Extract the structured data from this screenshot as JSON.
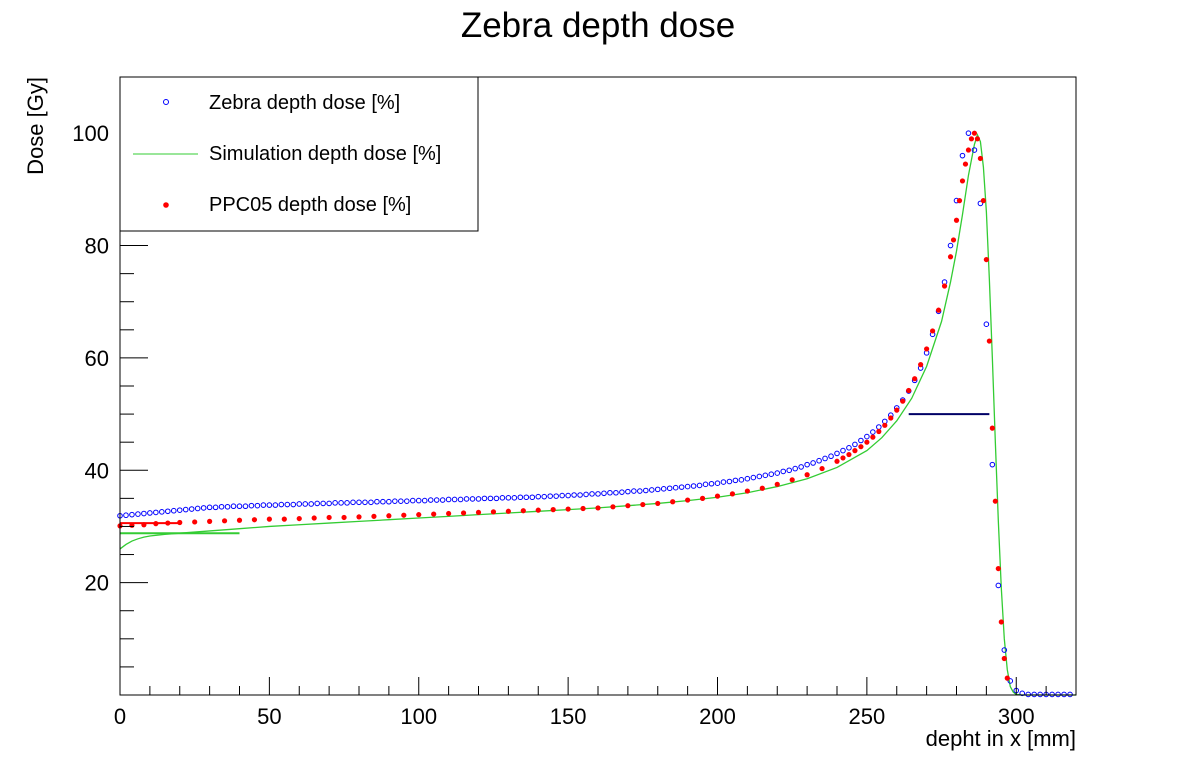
{
  "chart_data": {
    "type": "scatter",
    "title": "Zebra depth dose",
    "xlabel": "depht in x [mm]",
    "ylabel": "Dose [Gy]",
    "xlim": [
      0,
      320
    ],
    "ylim": [
      0,
      110
    ],
    "x_ticks": [
      0,
      50,
      100,
      150,
      200,
      250,
      300
    ],
    "y_ticks": [
      20,
      40,
      60,
      80,
      100
    ],
    "legend_position": "top-left",
    "grid": false,
    "series": [
      {
        "name": "Zebra depth dose [%]",
        "marker": "open-circle",
        "color": "#0000ff",
        "x": [
          0,
          2,
          4,
          6,
          8,
          10,
          12,
          14,
          16,
          18,
          20,
          22,
          24,
          26,
          28,
          30,
          32,
          34,
          36,
          38,
          40,
          42,
          44,
          46,
          48,
          50,
          52,
          54,
          56,
          58,
          60,
          62,
          64,
          66,
          68,
          70,
          72,
          74,
          76,
          78,
          80,
          82,
          84,
          86,
          88,
          90,
          92,
          94,
          96,
          98,
          100,
          102,
          104,
          106,
          108,
          110,
          112,
          114,
          116,
          118,
          120,
          122,
          124,
          126,
          128,
          130,
          132,
          134,
          136,
          138,
          140,
          142,
          144,
          146,
          148,
          150,
          152,
          154,
          156,
          158,
          160,
          162,
          164,
          166,
          168,
          170,
          172,
          174,
          176,
          178,
          180,
          182,
          184,
          186,
          188,
          190,
          192,
          194,
          196,
          198,
          200,
          202,
          204,
          206,
          208,
          210,
          212,
          214,
          216,
          218,
          220,
          222,
          224,
          226,
          228,
          230,
          232,
          234,
          236,
          238,
          240,
          242,
          244,
          246,
          248,
          250,
          252,
          254,
          256,
          258,
          260,
          262,
          264,
          266,
          268,
          270,
          272,
          274,
          276,
          278,
          280,
          282,
          284,
          286,
          288,
          290,
          292,
          294,
          296,
          298,
          300,
          302,
          304,
          306,
          308,
          310,
          312,
          314,
          316,
          318
        ],
        "y": [
          31.9,
          32.0,
          32.1,
          32.2,
          32.3,
          32.4,
          32.5,
          32.6,
          32.7,
          32.8,
          32.9,
          33.0,
          33.1,
          33.2,
          33.3,
          33.4,
          33.4,
          33.5,
          33.5,
          33.6,
          33.6,
          33.6,
          33.7,
          33.7,
          33.8,
          33.8,
          33.8,
          33.9,
          33.9,
          33.9,
          34.0,
          34.0,
          34.0,
          34.1,
          34.1,
          34.1,
          34.2,
          34.2,
          34.2,
          34.3,
          34.3,
          34.3,
          34.3,
          34.4,
          34.4,
          34.4,
          34.5,
          34.5,
          34.5,
          34.6,
          34.6,
          34.6,
          34.7,
          34.7,
          34.7,
          34.8,
          34.8,
          34.8,
          34.9,
          34.9,
          34.9,
          35.0,
          35.0,
          35.0,
          35.1,
          35.1,
          35.1,
          35.2,
          35.2,
          35.2,
          35.3,
          35.3,
          35.4,
          35.4,
          35.5,
          35.5,
          35.6,
          35.6,
          35.7,
          35.8,
          35.8,
          35.9,
          36.0,
          36.0,
          36.1,
          36.2,
          36.3,
          36.3,
          36.4,
          36.5,
          36.6,
          36.7,
          36.8,
          36.9,
          37.0,
          37.1,
          37.2,
          37.3,
          37.5,
          37.6,
          37.7,
          37.9,
          38.0,
          38.2,
          38.3,
          38.5,
          38.7,
          38.9,
          39.1,
          39.3,
          39.5,
          39.8,
          40.0,
          40.3,
          40.6,
          41.0,
          41.3,
          41.7,
          42.1,
          42.5,
          43.0,
          43.5,
          44.0,
          44.6,
          45.3,
          46.0,
          46.8,
          47.7,
          48.7,
          49.8,
          51.1,
          52.5,
          54.1,
          56.0,
          58.2,
          60.9,
          64.2,
          68.3,
          73.5,
          80.0,
          88.0,
          96.0,
          100.0,
          97.0,
          87.5,
          66.0,
          41.0,
          19.5,
          8.0,
          2.5,
          0.8,
          0.3,
          0.1,
          0.1,
          0.1,
          0.1,
          0.1,
          0.1,
          0.1,
          0.1
        ]
      },
      {
        "name": "Simulation depth dose [%]",
        "marker": "line",
        "color": "#33cc33",
        "x": [
          0,
          2,
          4,
          6,
          8,
          10,
          15,
          20,
          25,
          30,
          40,
          50,
          60,
          70,
          80,
          90,
          100,
          110,
          120,
          130,
          140,
          150,
          160,
          170,
          180,
          190,
          200,
          210,
          220,
          230,
          240,
          250,
          255,
          260,
          265,
          270,
          275,
          278,
          280,
          282,
          284,
          286,
          287,
          288,
          289,
          290,
          291,
          292,
          293,
          294,
          295,
          296,
          297,
          298,
          299,
          300,
          302,
          305,
          310,
          320
        ],
        "y": [
          26.0,
          26.8,
          27.4,
          27.8,
          28.1,
          28.3,
          28.6,
          28.8,
          29.0,
          29.2,
          29.6,
          30.0,
          30.3,
          30.6,
          30.9,
          31.2,
          31.5,
          31.8,
          32.1,
          32.4,
          32.7,
          33.0,
          33.3,
          33.7,
          34.1,
          34.6,
          35.2,
          36.0,
          37.1,
          38.5,
          40.5,
          43.5,
          45.8,
          48.8,
          52.8,
          58.5,
          66.5,
          73.5,
          79.0,
          85.5,
          92.5,
          98.0,
          99.7,
          98.5,
          94.0,
          86.0,
          74.0,
          60.0,
          45.0,
          31.0,
          19.0,
          10.0,
          4.5,
          1.5,
          0.5,
          0.1,
          0,
          0,
          0,
          0
        ]
      },
      {
        "name": "PPC05 depth dose [%]",
        "marker": "filled-circle",
        "color": "#ff0000",
        "x": [
          0,
          4,
          8,
          12,
          16,
          20,
          25,
          30,
          35,
          40,
          45,
          50,
          55,
          60,
          65,
          70,
          75,
          80,
          85,
          90,
          95,
          100,
          105,
          110,
          115,
          120,
          125,
          130,
          135,
          140,
          145,
          150,
          155,
          160,
          165,
          170,
          175,
          180,
          185,
          190,
          195,
          200,
          205,
          210,
          215,
          220,
          225,
          230,
          235,
          240,
          242,
          244,
          246,
          248,
          250,
          252,
          254,
          256,
          258,
          260,
          262,
          264,
          266,
          268,
          270,
          272,
          274,
          276,
          278,
          279,
          280,
          281,
          282,
          283,
          284,
          285,
          286,
          287,
          288,
          289,
          290,
          291,
          292,
          293,
          294,
          295,
          296,
          297
        ],
        "y": [
          30.1,
          30.2,
          30.3,
          30.5,
          30.6,
          30.7,
          30.8,
          30.9,
          31.0,
          31.1,
          31.2,
          31.3,
          31.3,
          31.4,
          31.5,
          31.6,
          31.6,
          31.7,
          31.8,
          31.9,
          32.0,
          32.1,
          32.2,
          32.3,
          32.4,
          32.5,
          32.6,
          32.7,
          32.8,
          32.9,
          33.0,
          33.1,
          33.2,
          33.3,
          33.5,
          33.7,
          33.9,
          34.1,
          34.4,
          34.7,
          35.0,
          35.4,
          35.8,
          36.3,
          36.8,
          37.5,
          38.3,
          39.2,
          40.3,
          41.6,
          42.2,
          42.8,
          43.5,
          44.2,
          45.0,
          45.9,
          46.9,
          48.0,
          49.3,
          50.7,
          52.3,
          54.2,
          56.3,
          58.8,
          61.6,
          64.8,
          68.5,
          72.8,
          78.0,
          81.0,
          84.5,
          88.0,
          91.5,
          94.5,
          97.0,
          99.0,
          100.0,
          99.0,
          95.5,
          88.0,
          77.5,
          63.0,
          47.5,
          34.5,
          22.5,
          13.0,
          6.5,
          3.0
        ]
      }
    ],
    "extra_segments": [
      {
        "color": "#33cc33",
        "x": [
          0,
          40
        ],
        "y": [
          28.8,
          28.8
        ]
      },
      {
        "color": "#ff0000",
        "x": [
          0,
          20
        ],
        "y": [
          30.6,
          30.6
        ]
      },
      {
        "color": "#000066",
        "x": [
          264,
          291
        ],
        "y": [
          50.0,
          50.0
        ]
      }
    ]
  }
}
